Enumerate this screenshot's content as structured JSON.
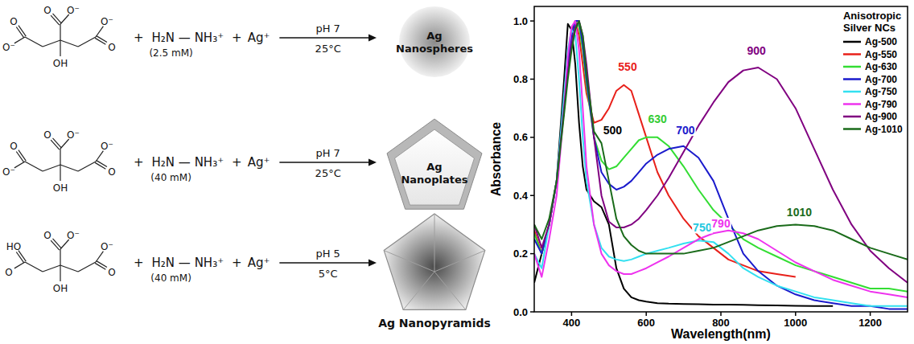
{
  "chart_data": {
    "type": "line",
    "xlabel": "Wavelength(nm)",
    "ylabel": "Absorbance",
    "legend_title": "Anisotropic Silver NCs",
    "legend": "upper right",
    "grid": false,
    "xlim": [
      300,
      1300
    ],
    "ylim": [
      0,
      1.05
    ],
    "xticks": [
      400,
      600,
      800,
      1000,
      1200
    ],
    "yticks": [
      {
        "value": 0,
        "label": "0.0"
      },
      0.2,
      0.4,
      0.6,
      0.8,
      {
        "value": 1,
        "label": "1.0"
      }
    ],
    "x": [
      300,
      320,
      340,
      360,
      380,
      390,
      400,
      410,
      420,
      430,
      440,
      460,
      480,
      500,
      520,
      540,
      560,
      580,
      600,
      630,
      660,
      700,
      740,
      780,
      820,
      860,
      900,
      950,
      1000,
      1050,
      1100,
      1150,
      1200,
      1250,
      1300
    ],
    "series": [
      {
        "name": "Ag-500",
        "color": "#000000",
        "values": [
          0.1,
          0.2,
          0.3,
          0.45,
          0.8,
          0.99,
          0.97,
          0.85,
          0.65,
          0.5,
          0.42,
          0.38,
          0.36,
          0.3,
          0.15,
          0.08,
          0.05,
          0.04,
          0.035,
          0.03,
          0.028,
          0.027,
          0.026,
          0.025,
          0.025,
          0.024,
          0.023,
          0.022,
          0.021,
          0.02,
          0.02,
          null,
          null,
          null,
          null
        ]
      },
      {
        "name": "Ag-550",
        "color": "#e8201a",
        "values": [
          0.28,
          0.2,
          0.3,
          0.45,
          0.7,
          0.85,
          0.97,
          1.0,
          0.95,
          0.85,
          0.75,
          0.65,
          0.66,
          0.7,
          0.76,
          0.78,
          0.76,
          0.68,
          0.6,
          0.48,
          0.4,
          0.32,
          0.26,
          0.22,
          0.18,
          0.16,
          0.14,
          0.13,
          0.12,
          null,
          null,
          null,
          null,
          null,
          null
        ]
      },
      {
        "name": "Ag-630",
        "color": "#33dd33",
        "values": [
          0.27,
          0.2,
          0.3,
          0.45,
          0.7,
          0.85,
          0.95,
          1.0,
          0.98,
          0.9,
          0.78,
          0.6,
          0.52,
          0.49,
          0.5,
          0.53,
          0.56,
          0.59,
          0.6,
          0.6,
          0.57,
          0.5,
          0.42,
          0.35,
          0.3,
          0.25,
          0.22,
          0.19,
          0.16,
          0.14,
          0.12,
          0.1,
          0.08,
          0.08,
          0.07
        ]
      },
      {
        "name": "Ag-700",
        "color": "#1a1acc",
        "values": [
          0.25,
          0.2,
          0.3,
          0.45,
          0.7,
          0.85,
          0.95,
          1.0,
          1.0,
          0.92,
          0.8,
          0.6,
          0.48,
          0.44,
          0.42,
          0.43,
          0.45,
          0.48,
          0.51,
          0.54,
          0.56,
          0.57,
          0.53,
          0.45,
          0.32,
          0.2,
          0.14,
          0.09,
          0.06,
          0.04,
          0.03,
          0.02,
          0.02,
          0.01,
          0.01
        ]
      },
      {
        "name": "Ag-750",
        "color": "#33e0f0",
        "values": [
          0.2,
          0.15,
          0.3,
          0.45,
          0.75,
          0.9,
          0.97,
          0.95,
          0.8,
          0.6,
          0.45,
          0.3,
          0.22,
          0.19,
          0.18,
          0.175,
          0.18,
          0.19,
          0.2,
          0.21,
          0.22,
          0.235,
          0.245,
          0.24,
          0.2,
          0.15,
          0.12,
          0.09,
          0.07,
          0.05,
          0.04,
          0.03,
          0.02,
          0.02,
          0.02
        ]
      },
      {
        "name": "Ag-790",
        "color": "#ee33ee",
        "values": [
          0.2,
          0.12,
          0.25,
          0.4,
          0.7,
          0.88,
          0.98,
          1.0,
          0.9,
          0.7,
          0.5,
          0.3,
          0.2,
          0.16,
          0.14,
          0.13,
          0.13,
          0.14,
          0.15,
          0.17,
          0.19,
          0.22,
          0.25,
          0.27,
          0.28,
          0.27,
          0.25,
          0.21,
          0.17,
          0.14,
          0.11,
          0.09,
          0.07,
          0.06,
          0.05
        ]
      },
      {
        "name": "Ag-900",
        "color": "#800080",
        "values": [
          0.3,
          0.22,
          0.3,
          0.45,
          0.7,
          0.82,
          0.92,
          0.98,
          1.0,
          0.95,
          0.85,
          0.6,
          0.4,
          0.31,
          0.29,
          0.29,
          0.3,
          0.32,
          0.35,
          0.4,
          0.46,
          0.55,
          0.64,
          0.72,
          0.79,
          0.83,
          0.84,
          0.8,
          0.7,
          0.56,
          0.42,
          0.3,
          0.21,
          0.15,
          0.1
        ]
      },
      {
        "name": "Ag-1010",
        "color": "#1a6b1a",
        "values": [
          0.3,
          0.25,
          0.32,
          0.45,
          0.68,
          0.8,
          0.9,
          0.97,
          1.0,
          0.95,
          0.82,
          0.62,
          0.58,
          0.45,
          0.32,
          0.26,
          0.23,
          0.21,
          0.2,
          0.2,
          0.2,
          0.2,
          0.21,
          0.22,
          0.24,
          0.26,
          0.28,
          0.295,
          0.3,
          0.295,
          0.28,
          0.25,
          0.22,
          0.2,
          0.18
        ]
      }
    ],
    "annotations": [
      {
        "text": "500",
        "x": 510,
        "y": 0.61,
        "color": "#000000"
      },
      {
        "text": "550",
        "x": 550,
        "y": 0.83,
        "color": "#e8201a"
      },
      {
        "text": "630",
        "x": 630,
        "y": 0.65,
        "color": "#33cc33"
      },
      {
        "text": "700",
        "x": 705,
        "y": 0.61,
        "color": "#1a1acc"
      },
      {
        "text": "750",
        "x": 750,
        "y": 0.275,
        "color": "#22c8e0"
      },
      {
        "text": "790",
        "x": 800,
        "y": 0.29,
        "color": "#ee33ee"
      },
      {
        "text": "900",
        "x": 895,
        "y": 0.885,
        "color": "#800080"
      },
      {
        "text": "1010",
        "x": 1010,
        "y": 0.33,
        "color": "#1a6b1a"
      }
    ]
  },
  "scheme": {
    "rows": [
      {
        "atoms": [
          "O",
          "O⁻",
          "O",
          "O⁻",
          "O⁻",
          "O",
          "OH"
        ],
        "plus": "+",
        "reagent": "H₂N — NH₃⁺",
        "concentration": "(2.5 mM)",
        "metal": "Ag⁺",
        "ph": "pH 7",
        "temperature": "25°C",
        "product": "Ag Nanospheres",
        "shape": "sphere"
      },
      {
        "atoms": [
          "O",
          "O⁻",
          "O",
          "O⁻",
          "O⁻",
          "O",
          "OH"
        ],
        "plus": "+",
        "reagent": "H₂N — NH₃⁺",
        "concentration": "(40 mM)",
        "metal": "Ag⁺",
        "ph": "pH 7",
        "temperature": "25°C",
        "product": "Ag Nanoplates",
        "shape": "plate"
      },
      {
        "atoms": [
          "HO",
          "O",
          "O",
          "O⁻",
          "O⁻",
          "O",
          "OH"
        ],
        "plus": "+",
        "reagent": "H₂N — NH₃⁺",
        "concentration": "(40 mM)",
        "metal": "Ag⁺",
        "ph": "pH 5",
        "temperature": "5°C",
        "product": "Ag Nanopyramids",
        "shape": "pyramid"
      }
    ]
  }
}
